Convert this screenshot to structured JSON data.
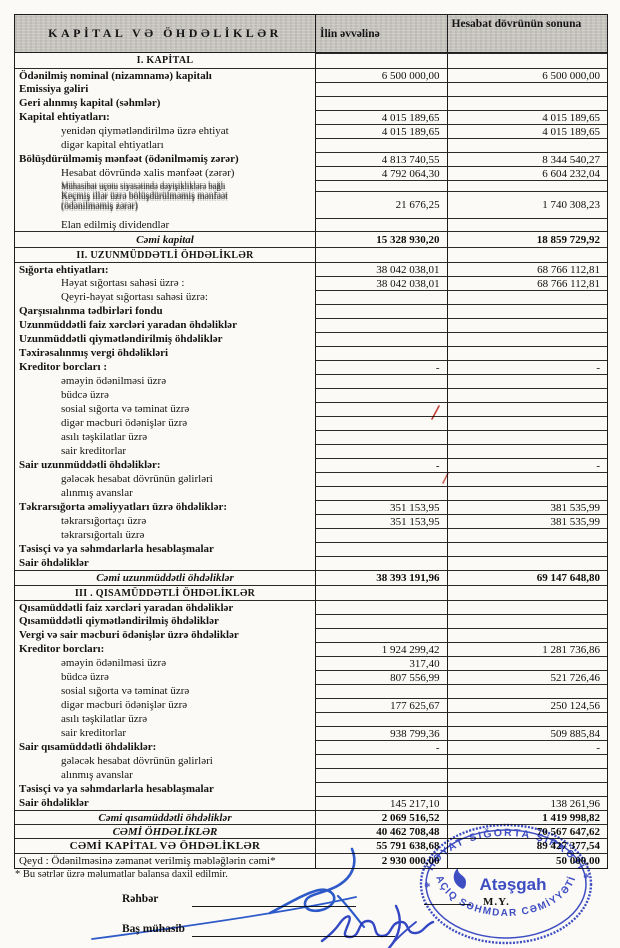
{
  "table": {
    "header": {
      "col_label": "KAPİTAL VƏ ÖHDƏLİKLƏR",
      "col_year_start": "İlin əvvəlinə",
      "col_period_end": "Hesabat dövrünün sonuna"
    },
    "rows": [
      {
        "type": "sec",
        "h": 15,
        "label": "I. KAPİTAL"
      },
      {
        "type": "item",
        "rule": true,
        "label": "Ödənilmiş nominal (nizamnamə) kapitalı",
        "v1": "6 500 000,00",
        "v2": "6 500 000,00"
      },
      {
        "type": "item",
        "label": "Emissiya gəliri"
      },
      {
        "type": "item",
        "label": "Geri alınmış kapital (səhmlər)"
      },
      {
        "type": "item",
        "label": "Kapital ehtiyatları:",
        "v1": "4 015 189,65",
        "v2": "4 015 189,65"
      },
      {
        "type": "sub",
        "label": "yenidən qiymətləndirilmə üzrə ehtiyat",
        "v1": "4 015 189,65",
        "v2": "4 015 189,65"
      },
      {
        "type": "sub",
        "label": "digər kapital ehtiyatları"
      },
      {
        "type": "item",
        "label": "Bölüşdürülməmiş mənfəət (ödənilməmiş zərər)",
        "v1": "4 813 740,55",
        "v2": "8 344 540,27"
      },
      {
        "type": "sub",
        "label": "Hesabat dövründə xalis mənfəət (zərər)",
        "v1": "4 792 064,30",
        "v2": "6 604 232,04"
      },
      {
        "type": "ovl1",
        "h": 11,
        "doubled": true,
        "label": "Mühasibat uçotu siyasətində dəyişikliklərə bağlı"
      },
      {
        "type": "ovl2",
        "h": 27,
        "doubled": true,
        "label": "Keçmiş illər üzrə bölüşdürülməmiş mənfəət",
        "label2": "(ödənilməmiş zərər)",
        "v1": "21 676,25",
        "v2": "1 740 308,23"
      },
      {
        "type": "sub",
        "h": 13,
        "label": "Elan edilmiş dividendlər"
      },
      {
        "type": "tot",
        "h": 16,
        "rule": true,
        "label": "Cəmi kapital",
        "v1": "15 328 930,20",
        "v2": "18 859 729,92"
      },
      {
        "type": "sec",
        "h": 15,
        "rule": true,
        "label": "II. UZUNMÜDDƏTLİ ÖHDƏLİKLƏR"
      },
      {
        "type": "item",
        "rule": true,
        "label": "Sığorta ehtiyatları:",
        "v1": "38 042 038,01",
        "v2": "68 766 112,81"
      },
      {
        "type": "sub",
        "label": "Həyat sığortası sahəsi üzrə :",
        "v1": "38 042 038,01",
        "v2": "68 766 112,81"
      },
      {
        "type": "sub",
        "label": "Qeyri-həyat sığortası sahəsi üzrə:"
      },
      {
        "type": "item",
        "label": "Qarşısıalınma tədbirləri fondu"
      },
      {
        "type": "item",
        "label": "Uzunmüddətli faiz xərcləri yaradan öhdəliklər"
      },
      {
        "type": "item",
        "label": "Uzunmüddətli qiymətləndirilmiş öhdəliklər"
      },
      {
        "type": "item",
        "label": "Təxirəsalınmış vergi öhdəlikləri"
      },
      {
        "type": "item",
        "label": "Kreditor borcları :",
        "v1": "-",
        "v2": "-"
      },
      {
        "type": "sub",
        "label": "əməyin ödənilməsi üzrə"
      },
      {
        "type": "sub",
        "label": "büdcə üzrə"
      },
      {
        "type": "sub",
        "label": "sosial sığorta və təminat üzrə"
      },
      {
        "type": "sub",
        "label": "digər məcburi ödənişlər üzrə"
      },
      {
        "type": "sub",
        "label": "asılı təşkilatlar üzrə"
      },
      {
        "type": "sub",
        "label": "sair kreditorlar"
      },
      {
        "type": "item",
        "label": "Sair uzunmüddətli öhdəliklər:",
        "v1": "-",
        "v2": "-"
      },
      {
        "type": "sub",
        "label": "gələcək hesabat dövrünün gəlirləri"
      },
      {
        "type": "sub",
        "label": "alınmış avanslar"
      },
      {
        "type": "item",
        "label": "Təkrarsığorta əməliyyatları üzrə öhdəliklər:",
        "v1": "351 153,95",
        "v2": "381 535,99"
      },
      {
        "type": "sub",
        "label": "təkrarsığortaçı üzrə",
        "v1": "351 153,95",
        "v2": "381 535,99"
      },
      {
        "type": "sub",
        "label": "təkrarsığortalı üzrə"
      },
      {
        "type": "item",
        "label": "Təsisçi və ya səhmdarlarla hesablaşmalar"
      },
      {
        "type": "item",
        "label": "Sair öhdəliklər"
      },
      {
        "type": "tot",
        "h": 15,
        "rule": true,
        "label": "Cəmi uzunmüddətli öhdəliklər",
        "v1": "38 393 191,96",
        "v2": "69 147 648,80"
      },
      {
        "type": "sec",
        "h": 15,
        "rule": true,
        "label": "III . QISAMÜDDƏTLİ ÖHDƏLİKLƏR"
      },
      {
        "type": "item",
        "rule": true,
        "label": "Qısamüddətli faiz xərcləri yaradan öhdəliklər"
      },
      {
        "type": "item",
        "label": "Qısamüddətli qiymətləndirilmiş öhdəliklər"
      },
      {
        "type": "item",
        "label": "Vergi və sair məcburi ödənişlər üzrə öhdəliklər"
      },
      {
        "type": "item",
        "label": "Kreditor borcları:",
        "v1": "1 924 299,42",
        "v2": "1 281 736,86"
      },
      {
        "type": "sub",
        "label": "əməyin ödənilməsi üzrə",
        "v1": "317,40"
      },
      {
        "type": "sub",
        "label": "büdcə üzrə",
        "v1": "807 556,99",
        "v2": "521 726,46"
      },
      {
        "type": "sub",
        "label": "sosial sığorta və təminat üzrə"
      },
      {
        "type": "sub",
        "label": "digər məcburi ödənişlər üzrə",
        "v1": "177 625,67",
        "v2": "250 124,56"
      },
      {
        "type": "sub",
        "label": "asılı təşkilatlar üzrə"
      },
      {
        "type": "sub",
        "label": "sair kreditorlar",
        "v1": "938 799,36",
        "v2": "509 885,84"
      },
      {
        "type": "item",
        "label": "Sair qısamüddətli öhdəliklər:",
        "v1": "-",
        "v2": "-"
      },
      {
        "type": "sub",
        "label": "gələcək hesabat dövrünün gəlirləri"
      },
      {
        "type": "sub",
        "label": "alınmış avanslar"
      },
      {
        "type": "item",
        "label": "Təsisçi və ya səhmdarlarla hesablaşmalar"
      },
      {
        "type": "item",
        "label": "Sair öhdəliklər",
        "v1": "145 217,10",
        "v2": "138 261,96"
      },
      {
        "type": "tot",
        "h": 14,
        "rule": true,
        "label": "Cəmi qısamüddətli öhdəliklər",
        "v1": "2 069 516,52",
        "v2": "1 419 998,82"
      },
      {
        "type": "grandi",
        "h": 14,
        "rule": true,
        "label": "CƏMİ ÖHDƏLİKLƏR",
        "v1": "40 462 708,48",
        "v2": "70 567 647,62"
      },
      {
        "type": "grand",
        "h": 15,
        "rule": true,
        "label": "CƏMİ KAPİTAL VƏ ÖHDƏLİKLƏR",
        "v1": "55 791 638,68",
        "v2": "89 427 377,54"
      },
      {
        "type": "note",
        "h": 15,
        "rule": true,
        "label": "Qeyd : Ödənilməsinə zəmanət verilmiş məbləğlərin cəmi*",
        "v1": "2 930 000,00",
        "v2": "50 000,00"
      }
    ]
  },
  "footer": {
    "footnote": "* Bu sətrlər üzrə məlumatlar balansa daxil edilmir.",
    "leader_label": "Rəhbər",
    "accountant_label": "Baş mühasib",
    "seal_place": "M.Y."
  },
  "stamp": {
    "top_text": "HƏYAT SIĞORTA ŞİRKƏTİ",
    "bottom_text": "AÇIQ SƏHMDAR CƏMİYYƏTİ",
    "logo_text": "Atəşgah",
    "color": "#2b3cc4"
  },
  "colors": {
    "paper": "#fbfaf7",
    "header_gray": "#c7c4be",
    "ink_blue": "#2b3cc4",
    "pen_blue": "#1d4ecb",
    "red_mark": "#c4403a"
  }
}
